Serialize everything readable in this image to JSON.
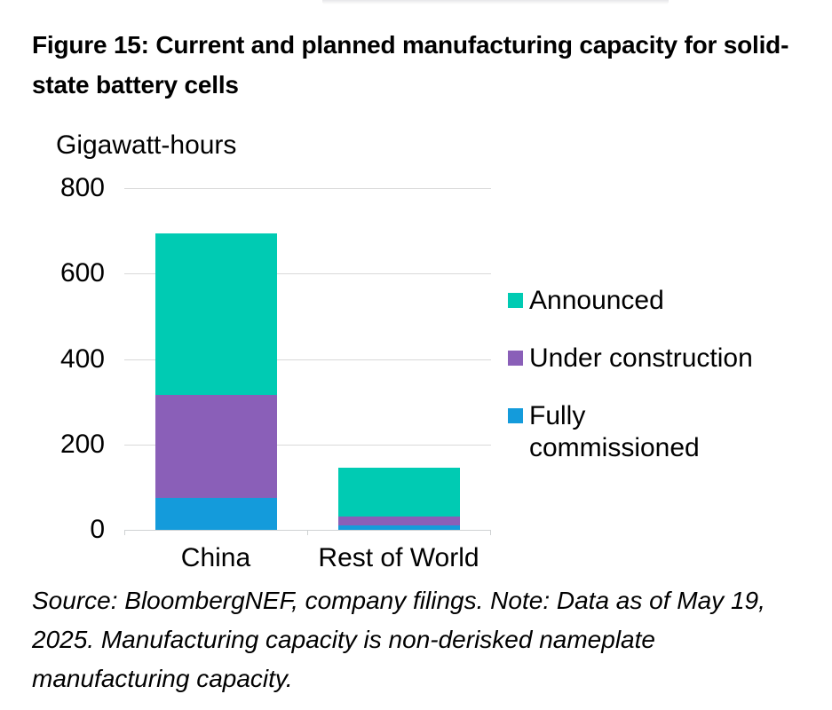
{
  "figure": {
    "title": "Figure 15: Current and planned manufacturing capacity for solid-state battery cells",
    "source_note": "Source: BloombergNEF, company filings. Note: Data as of May 19, 2025. Manufacturing capacity is non-derisked nameplate manufacturing capacity."
  },
  "chart_data": {
    "type": "bar",
    "stacked": true,
    "title": "Current and planned manufacturing capacity for solid-state battery cells",
    "ylabel": "Gigawatt-hours",
    "xlabel": "",
    "categories": [
      "China",
      "Rest of World"
    ],
    "series": [
      {
        "name": "Announced",
        "color": "#00cbb3",
        "values": [
          380,
          115
        ]
      },
      {
        "name": "Under construction",
        "color": "#8a5fb8",
        "values": [
          240,
          20
        ]
      },
      {
        "name": "Fully commissioned",
        "color": "#149bdb",
        "values": [
          75,
          10
        ]
      }
    ],
    "totals": [
      695,
      145
    ],
    "ylim": [
      0,
      800
    ],
    "yticks": [
      0,
      200,
      400,
      600,
      800
    ],
    "grid": "horizontal",
    "legend_position": "right",
    "gridline_color": "#d9d9d9"
  }
}
